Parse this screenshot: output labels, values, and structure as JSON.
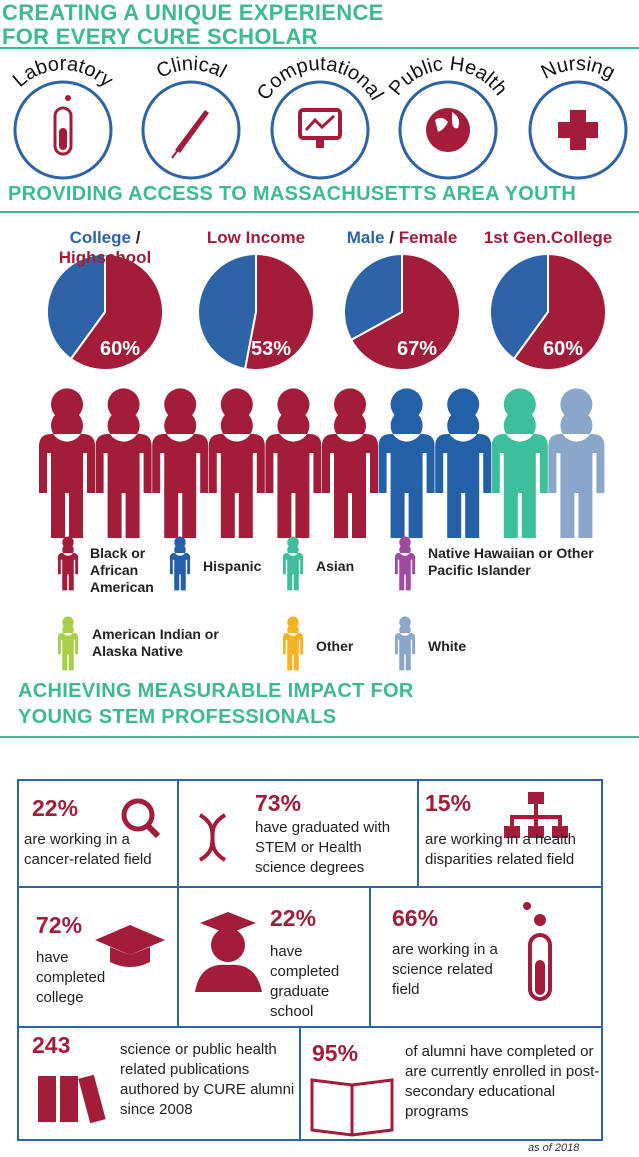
{
  "header": {
    "title_line1": "CREATING A UNIQUE EXPERIENCE",
    "title_line2": "FOR EVERY CURE SCHOLAR"
  },
  "tracks": [
    "Laboratory",
    "Clinical",
    "Computational",
    "Public Health",
    "Nursing"
  ],
  "access": {
    "title": "PROVIDING ACCESS TO MASSACHUSETTS AREA YOUTH",
    "colors": {
      "value": "#a31d3b",
      "rest": "#2e63a8"
    },
    "pies": [
      {
        "label_parts": [
          "College",
          "/",
          "Highschool"
        ],
        "value": 60,
        "value_label": "60%"
      },
      {
        "label_parts": [
          "Low Income"
        ],
        "value": 53,
        "value_label": "53%"
      },
      {
        "label_parts": [
          "Male",
          "/",
          "Female"
        ],
        "value": 67,
        "value_label": "67%"
      },
      {
        "label_parts": [
          "1st Gen.College"
        ],
        "value": 60,
        "value_label": "60%"
      }
    ]
  },
  "legend": [
    {
      "label": "Black or African American",
      "color": "#a31d3b"
    },
    {
      "label": "Hispanic",
      "color": "#2460a7"
    },
    {
      "label": "Asian",
      "color": "#3cbf9a"
    },
    {
      "label": "Native Hawaiian or Other Pacific Islander",
      "color": "#a04a9e"
    },
    {
      "label": "American Indian or Alaska Native",
      "color": "#a7cf4a"
    },
    {
      "label": "Other",
      "color": "#f6b420"
    },
    {
      "label": "White",
      "color": "#8aa6c9"
    }
  ],
  "impact": {
    "title_line1": "ACHIEVING MEASURABLE IMPACT FOR",
    "title_line2": "YOUNG STEM PROFESSIONALS",
    "stats": [
      {
        "figure": "22%",
        "text": "are working in a cancer-related field"
      },
      {
        "figure": "73%",
        "text": "have graduated with STEM or Health science degrees"
      },
      {
        "figure": "15%",
        "text": "are working in a health disparities related field"
      },
      {
        "figure": "72%",
        "text": "have completed college"
      },
      {
        "figure": "22%",
        "text": "have completed graduate school"
      },
      {
        "figure": "66%",
        "text": "are working in a science related field"
      },
      {
        "figure": "243",
        "text": "science or public health related publications authored by CURE alumni since 2008"
      },
      {
        "figure": "95%",
        "text": "of alumni have completed or are currently enrolled in post-secondary educational programs"
      }
    ],
    "note": "as of 2018"
  }
}
